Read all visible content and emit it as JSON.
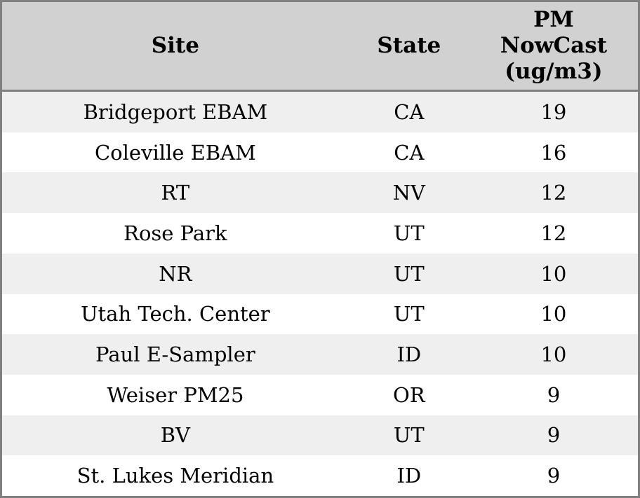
{
  "colors": {
    "outer_border": "#808080",
    "header_bg": "#d1d1d1",
    "header_rule": "#808080",
    "row_stripe_bg": "#efefef",
    "row_bg": "#ffffff",
    "text": "#000000"
  },
  "table": {
    "headers": [
      {
        "label": "Site"
      },
      {
        "label": "State"
      },
      {
        "label": "PM\nNowCast\n(ug/m3)"
      }
    ],
    "rows": [
      {
        "site": "Bridgeport EBAM",
        "state": "CA",
        "value": "19"
      },
      {
        "site": "Coleville EBAM",
        "state": "CA",
        "value": "16"
      },
      {
        "site": "RT",
        "state": "NV",
        "value": "12"
      },
      {
        "site": "Rose Park",
        "state": "UT",
        "value": "12"
      },
      {
        "site": "NR",
        "state": "UT",
        "value": "10"
      },
      {
        "site": "Utah Tech. Center",
        "state": "UT",
        "value": "10"
      },
      {
        "site": "Paul E-Sampler",
        "state": "ID",
        "value": "10"
      },
      {
        "site": "Weiser PM25",
        "state": "OR",
        "value": "9"
      },
      {
        "site": "BV",
        "state": "UT",
        "value": "9"
      },
      {
        "site": "St. Lukes Meridian",
        "state": "ID",
        "value": "9"
      }
    ]
  },
  "chart_data": {
    "type": "table",
    "columns": [
      "Site",
      "State",
      "PM NowCast (ug/m3)"
    ],
    "rows": [
      [
        "Bridgeport EBAM",
        "CA",
        19
      ],
      [
        "Coleville EBAM",
        "CA",
        16
      ],
      [
        "RT",
        "NV",
        12
      ],
      [
        "Rose Park",
        "UT",
        12
      ],
      [
        "NR",
        "UT",
        10
      ],
      [
        "Utah Tech. Center",
        "UT",
        10
      ],
      [
        "Paul E-Sampler",
        "ID",
        10
      ],
      [
        "Weiser PM25",
        "OR",
        9
      ],
      [
        "BV",
        "UT",
        9
      ],
      [
        "St. Lukes Meridian",
        "ID",
        9
      ]
    ]
  }
}
